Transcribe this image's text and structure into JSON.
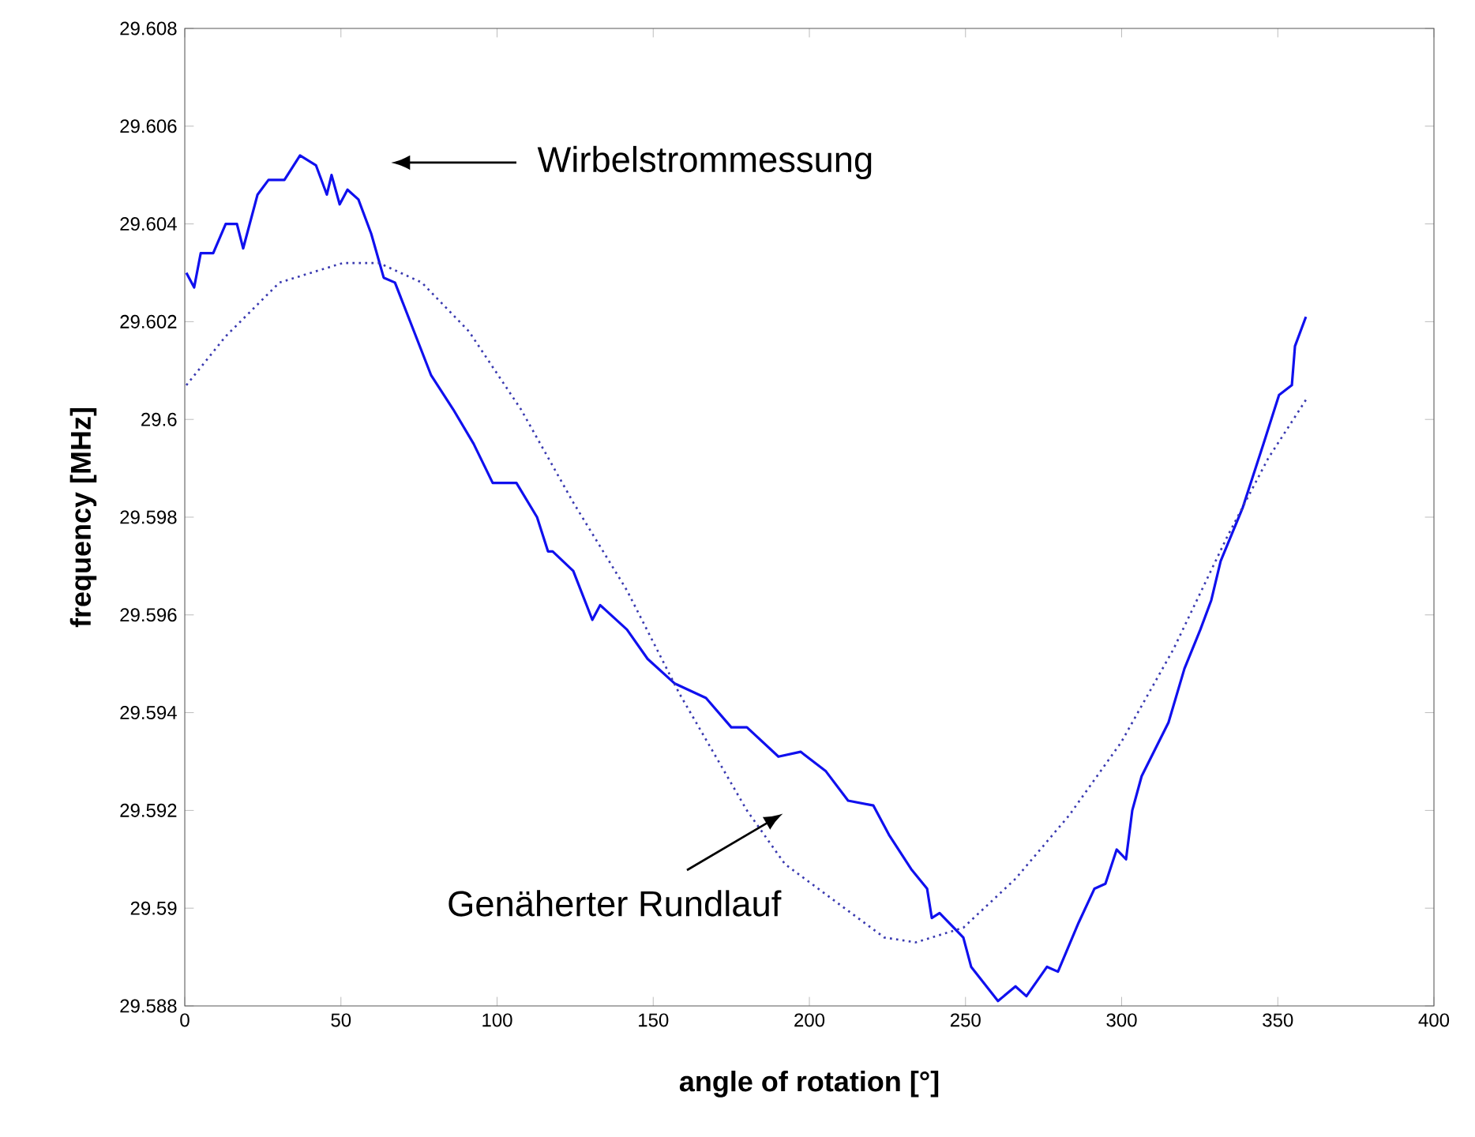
{
  "chart_data": {
    "type": "line",
    "xlabel": "angle of rotation [°]",
    "ylabel": "frequency  [MHz]",
    "xlim": [
      0,
      400
    ],
    "xticks": [
      0,
      50,
      100,
      150,
      200,
      250,
      300,
      350,
      400
    ],
    "ylim": [
      29.588,
      29.608
    ],
    "yticks": [
      29.588,
      29.59,
      29.592,
      29.594,
      29.596,
      29.598,
      29.6,
      29.602,
      29.604,
      29.606,
      29.608
    ],
    "series": [
      {
        "color": "#1010ee",
        "line_style": "solid",
        "x": [
          0.5,
          3.0,
          5.1,
          9.1,
          13.1,
          16.7,
          18.7,
          23.3,
          26.8,
          31.9,
          36.9,
          42.0,
          45.5,
          47.0,
          49.6,
          52.1,
          55.6,
          59.7,
          63.7,
          67.3,
          78.9,
          86.0,
          92.5,
          98.6,
          106.2,
          112.8,
          116.3,
          117.8,
          124.4,
          130.5,
          133.0,
          141.6,
          148.2,
          156.8,
          166.9,
          175.0,
          180.0,
          190.1,
          197.2,
          205.3,
          212.4,
          220.5,
          225.5,
          232.6,
          237.7,
          239.2,
          241.7,
          249.3,
          251.8,
          260.4,
          266.0,
          269.5,
          276.1,
          279.6,
          286.2,
          291.3,
          294.8,
          298.4,
          301.4,
          303.4,
          306.4,
          315.0,
          320.1,
          325.2,
          328.7,
          331.7,
          338.8,
          345.4,
          350.4,
          354.5,
          355.5,
          359.0
        ],
        "values": [
          29.603,
          29.6027,
          29.6034,
          29.6034,
          29.604,
          29.604,
          29.6035,
          29.6046,
          29.6049,
          29.6049,
          29.6054,
          29.6052,
          29.6046,
          29.605,
          29.6044,
          29.6047,
          29.6045,
          29.6038,
          29.6029,
          29.6028,
          29.6009,
          29.6002,
          29.5995,
          29.5987,
          29.5987,
          29.598,
          29.5973,
          29.5973,
          29.5969,
          29.5959,
          29.5962,
          29.5957,
          29.5951,
          29.5946,
          29.5943,
          29.5937,
          29.5937,
          29.5931,
          29.5932,
          29.5928,
          29.5922,
          29.5921,
          29.5915,
          29.5908,
          29.5904,
          29.5898,
          29.5899,
          29.5894,
          29.5888,
          29.5881,
          29.5884,
          29.5882,
          29.5888,
          29.5887,
          29.5897,
          29.5904,
          29.5905,
          29.5912,
          29.591,
          29.592,
          29.5927,
          29.5938,
          29.5949,
          29.5957,
          29.5963,
          29.5971,
          29.5982,
          29.5995,
          29.6005,
          29.6007,
          29.6015,
          29.6021
        ]
      },
      {
        "color": "#3a3ab0",
        "line_style": "dotted",
        "x": [
          0.5,
          13.1,
          30.3,
          50.6,
          62.2,
          75.9,
          91.0,
          107.7,
          124.4,
          141.6,
          158.3,
          180.0,
          192.2,
          224.0,
          234.1,
          249.3,
          266.0,
          283.2,
          299.9,
          316.6,
          333.8,
          346.9,
          359.0
        ],
        "values": [
          29.6007,
          29.6017,
          29.6028,
          29.6032,
          29.6032,
          29.6028,
          29.6018,
          29.6002,
          29.5983,
          29.5965,
          29.5944,
          29.592,
          29.5909,
          29.5894,
          29.5893,
          29.5896,
          29.5906,
          29.5919,
          29.5934,
          29.5953,
          29.5976,
          29.5992,
          29.6004
        ]
      }
    ],
    "annotations": [
      "Wirbelstrommessung",
      "Genäherter Rundlauf"
    ]
  }
}
